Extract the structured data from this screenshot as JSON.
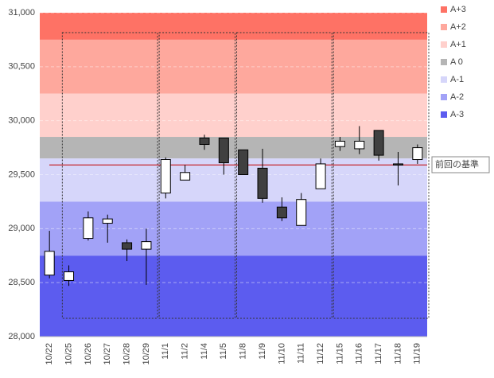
{
  "chart_data": {
    "type": "candlestick",
    "categories": [
      "10/22",
      "10/25",
      "10/26",
      "10/27",
      "10/28",
      "10/29",
      "11/1",
      "11/2",
      "11/4",
      "11/5",
      "11/8",
      "11/9",
      "11/10",
      "11/11",
      "11/12",
      "11/15",
      "11/16",
      "11/17",
      "11/18",
      "11/19"
    ],
    "open": [
      28570,
      28520,
      28910,
      29050,
      28870,
      28810,
      29330,
      29450,
      29840,
      29840,
      29730,
      29560,
      29200,
      29030,
      29370,
      29760,
      29740,
      29910,
      29600,
      29640
    ],
    "high": [
      28980,
      28660,
      29160,
      29130,
      28900,
      29000,
      29660,
      29590,
      29870,
      29840,
      29730,
      29740,
      29290,
      29330,
      29650,
      29850,
      29950,
      29910,
      29710,
      29780
    ],
    "low": [
      28540,
      28470,
      28890,
      28870,
      28700,
      28480,
      29280,
      29450,
      29730,
      29500,
      29500,
      29240,
      29070,
      29030,
      29370,
      29720,
      29690,
      29630,
      29400,
      29600
    ],
    "close": [
      28790,
      28600,
      29100,
      29090,
      28810,
      28880,
      29640,
      29520,
      29780,
      29610,
      29500,
      29280,
      29100,
      29270,
      29600,
      29810,
      29810,
      29680,
      29590,
      29750
    ],
    "up_color": "#ffffff",
    "down_color": "#404040",
    "bands": [
      {
        "name": "A+3",
        "from": 30750,
        "to": 31000,
        "color": "#fe7265"
      },
      {
        "name": "A+2",
        "from": 30250,
        "to": 30750,
        "color": "#fea89d"
      },
      {
        "name": "A+1",
        "from": 29850,
        "to": 30250,
        "color": "#ffd0cc"
      },
      {
        "name": "A 0",
        "from": 29650,
        "to": 29850,
        "color": "#b5b5b5"
      },
      {
        "name": "A-1",
        "from": 29250,
        "to": 29650,
        "color": "#d6d6fa"
      },
      {
        "name": "A-2",
        "from": 28750,
        "to": 29250,
        "color": "#a2a2f7"
      },
      {
        "name": "A-3",
        "from": 28000,
        "to": 28750,
        "color": "#5c5cef"
      }
    ],
    "reference_line": {
      "value": 29590,
      "label": "前回の基準",
      "color": "#c00000"
    },
    "ylim": [
      28000,
      31000
    ],
    "yticks": [
      {
        "value": 28000,
        "label": "28,000"
      },
      {
        "value": 28500,
        "label": "28,500"
      },
      {
        "value": 29000,
        "label": "29,000"
      },
      {
        "value": 29500,
        "label": "29,500"
      },
      {
        "value": 30000,
        "label": "30,000"
      },
      {
        "value": 30500,
        "label": "30,500"
      },
      {
        "value": 31000,
        "label": "31,000"
      }
    ],
    "grid": true
  }
}
